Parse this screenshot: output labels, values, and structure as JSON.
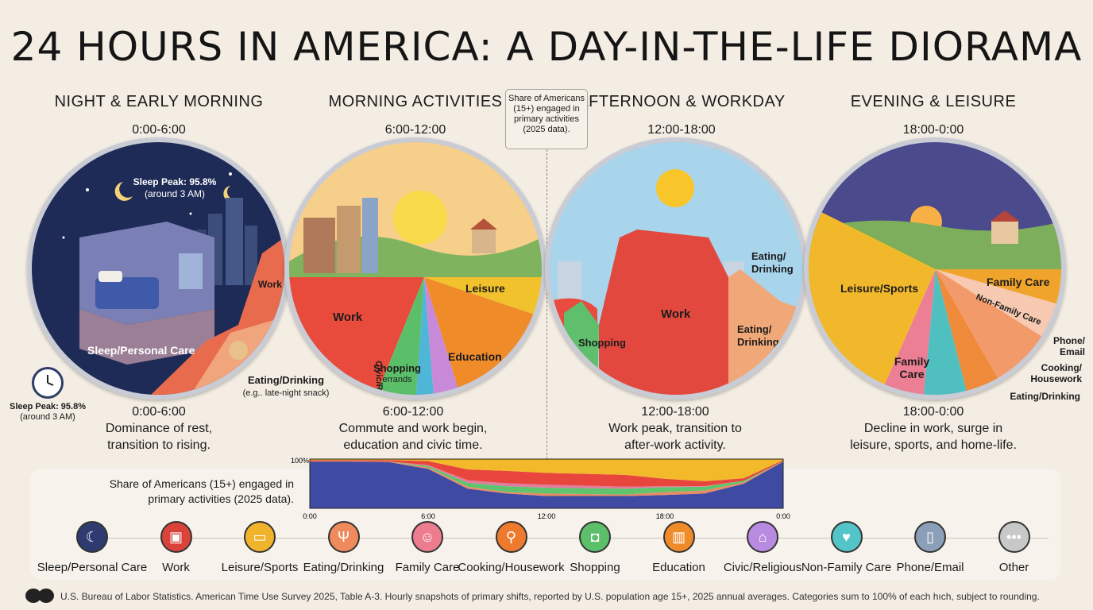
{
  "title": "24 HOURS IN AMERICA: A DAY-IN-THE-LIFE DIORAMA",
  "panels": [
    {
      "title": "NIGHT & EARLY MORNING",
      "time": "0:00-6:00",
      "caption_time": "0:00-6:00",
      "caption": "Dominance of rest, transition to rising.",
      "labels": {
        "peak": "Sleep Peak: 95.8%",
        "peak_sub": "(around 3 AM)",
        "main": "Sleep/Personal Care",
        "work": "Work",
        "eating": "Eating/Drinking",
        "eating_sub": "(e.g.. late-night snack)"
      }
    },
    {
      "title": "MORNING ACTIVITIES",
      "time": "6:00-12:00",
      "caption_time": "6:00-12:00",
      "caption": "Commute and work begin, education and civic time.",
      "labels": {
        "work": "Work",
        "shopping": "Shopping",
        "shopping_sub": "errands",
        "civic": "Civic/Religious",
        "education": "Education",
        "leisure": "Leisure"
      }
    },
    {
      "title": "AFTERNOON & WORKDAY",
      "time": "12:00-18:00",
      "caption_time": "12:00-18:00",
      "caption": "Work peak, transition to after-work activity.",
      "labels": {
        "work": "Work",
        "shopping": "Shopping",
        "eating1": "Eating/ Drinking",
        "eating2": "Eating/ Drinking"
      }
    },
    {
      "title": "EVENING & LEISURE",
      "time": "18:00-0:00",
      "caption_time": "18:00-0:00",
      "caption": "Decline in work, surge in leisure, sports, and home-life.",
      "labels": {
        "leisure": "Leisure/Sports",
        "family": "Family Care",
        "family2": "Family Care",
        "nonfamily": "Non-Family Care",
        "phone": "Phone/ Email",
        "cooking": "Cooking/ Housework",
        "eating": "Eating/Drinking"
      }
    }
  ],
  "callout": "Share of Americans (15+) engaged in primary activities (2025 data).",
  "clock_caption": {
    "line1": "Sleep Peak: 95.8%",
    "line2": "(around 3 AM)"
  },
  "share_label": "Share of Americans (15+) engaged in primary activities (2025 data).",
  "chart_data": {
    "type": "area",
    "title": "",
    "x_ticks": [
      "0:00",
      "6:00",
      "12:00",
      "18:00",
      "0:00"
    ],
    "y_label_top": "100%",
    "x": [
      0,
      2,
      4,
      6,
      8,
      10,
      12,
      14,
      16,
      18,
      20,
      22,
      24
    ],
    "ylim": [
      0,
      100
    ],
    "series": [
      {
        "name": "Sleep/Personal Care",
        "color": "#3f4aa3",
        "values": [
          95,
          95,
          94,
          80,
          40,
          30,
          25,
          25,
          25,
          27,
          30,
          50,
          95
        ]
      },
      {
        "name": "Eating/Drinking",
        "color": "#e98a64",
        "values": [
          1,
          1,
          1,
          3,
          4,
          3,
          5,
          4,
          3,
          6,
          6,
          3,
          1
        ]
      },
      {
        "name": "Shopping",
        "color": "#5fc46d",
        "values": [
          0,
          0,
          0,
          3,
          8,
          12,
          12,
          12,
          12,
          10,
          8,
          3,
          0
        ]
      },
      {
        "name": "Education",
        "color": "#e27ba0",
        "values": [
          0,
          0,
          0,
          2,
          5,
          6,
          6,
          5,
          4,
          2,
          1,
          0,
          0
        ]
      },
      {
        "name": "Work",
        "color": "#e8463d",
        "values": [
          2,
          2,
          3,
          8,
          22,
          25,
          24,
          24,
          24,
          15,
          10,
          5,
          2
        ]
      },
      {
        "name": "Leisure/Sports",
        "color": "#f2b92a",
        "values": [
          2,
          2,
          2,
          4,
          21,
          24,
          28,
          30,
          32,
          40,
          45,
          39,
          2
        ]
      }
    ]
  },
  "legend": [
    {
      "label": "Sleep/Personal Care",
      "icon": "moon-icon",
      "color": "#2e3a70",
      "glyph": "☾"
    },
    {
      "label": "Work",
      "icon": "briefcase-icon",
      "color": "#d9433a",
      "glyph": "▣"
    },
    {
      "label": "Leisure/Sports",
      "icon": "tv-ball-icon",
      "color": "#f0b42c",
      "glyph": "▭"
    },
    {
      "label": "Eating/Drinking",
      "icon": "fork-knife-icon",
      "color": "#ee8a5c",
      "glyph": "Ψ"
    },
    {
      "label": "Family Care",
      "icon": "family-icon",
      "color": "#ee7c8f",
      "glyph": "☺"
    },
    {
      "label": "Cooking/Housework",
      "icon": "pan-broom-icon",
      "color": "#ee7a2e",
      "glyph": "⚲"
    },
    {
      "label": "Shopping",
      "icon": "shopping-bag-icon",
      "color": "#5cbf6a",
      "glyph": "◘"
    },
    {
      "label": "Education",
      "icon": "book-icon",
      "color": "#f08b2a",
      "glyph": "▥"
    },
    {
      "label": "Civic/Religious",
      "icon": "church-icon",
      "color": "#b98be0",
      "glyph": "⌂"
    },
    {
      "label": "Non-Family Care",
      "icon": "heart-hand-icon",
      "color": "#53c4c7",
      "glyph": "♥"
    },
    {
      "label": "Phone/Email",
      "icon": "phone-icon",
      "color": "#8b9fb8",
      "glyph": "▯"
    },
    {
      "label": "Other",
      "icon": "ellipsis-icon",
      "color": "#c8c8c8",
      "glyph": "•••"
    }
  ],
  "footer": "U.S. Bureau of Labor Statistics. American Time Use Survey 2025, Table A-3. Hourly snapshots of primary shifts, reported by U.S. population age 15+, 2025 annual averages. Categories sum to 100% of each hıch, subject to rounding."
}
